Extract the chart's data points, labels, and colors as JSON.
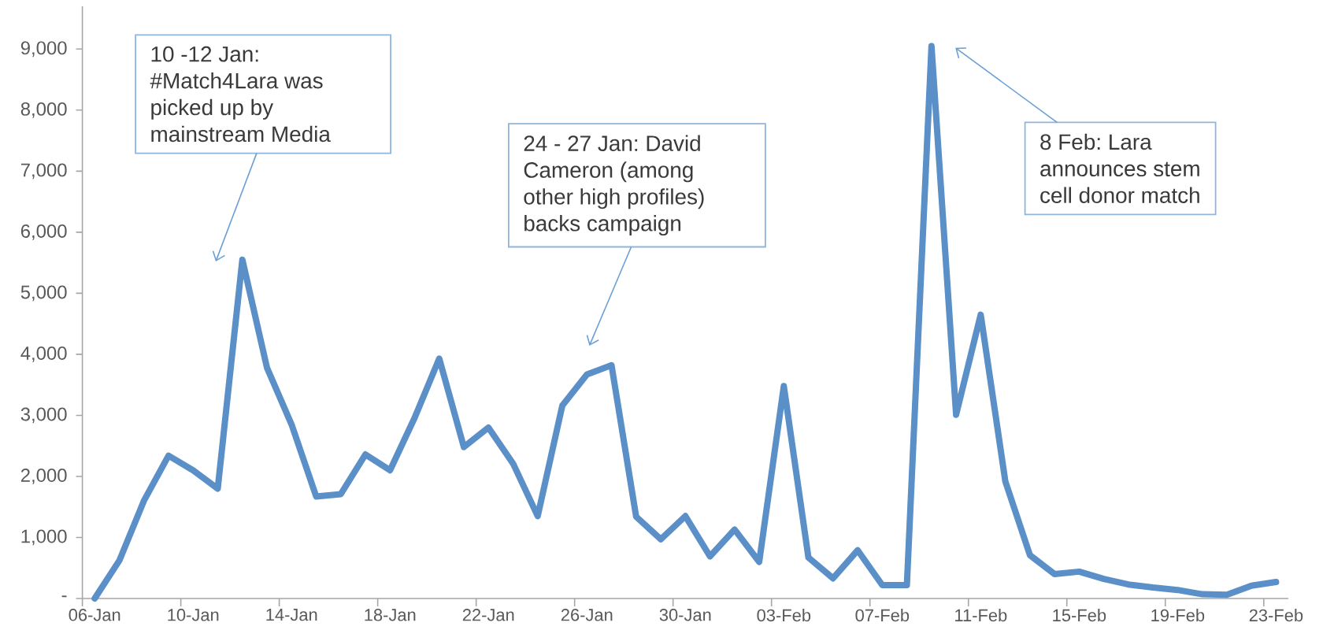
{
  "chart_data": {
    "type": "line",
    "categories": [
      "06-Jan",
      null,
      null,
      null,
      "10-Jan",
      null,
      null,
      null,
      "14-Jan",
      null,
      null,
      null,
      "18-Jan",
      null,
      null,
      null,
      "22-Jan",
      null,
      null,
      null,
      "26-Jan",
      null,
      null,
      null,
      "30-Jan",
      null,
      null,
      null,
      "03-Feb",
      null,
      null,
      null,
      "07-Feb",
      null,
      null,
      null,
      "11-Feb",
      null,
      null,
      null,
      "15-Feb",
      null,
      null,
      null,
      "19-Feb",
      null,
      null,
      null,
      "23-Feb"
    ],
    "series": [
      {
        "color": "#5b8fc8",
        "values": [
          0,
          620,
          1600,
          2340,
          2100,
          1800,
          5550,
          3780,
          2850,
          1670,
          1710,
          2360,
          2100,
          2960,
          3930,
          2480,
          2800,
          2210,
          1350,
          3160,
          3670,
          3820,
          1340,
          970,
          1350,
          690,
          1130,
          600,
          3480,
          670,
          330,
          790,
          220,
          220,
          9050,
          3010,
          4650,
          1920,
          710,
          400,
          440,
          320,
          230,
          180,
          140,
          70,
          60,
          210,
          270
        ]
      }
    ],
    "ylim": [
      0,
      9700
    ],
    "yticks": [
      {
        "value": 0,
        "label": "-"
      },
      {
        "value": 1000,
        "label": "1,000"
      },
      {
        "value": 2000,
        "label": "2,000"
      },
      {
        "value": 3000,
        "label": "3,000"
      },
      {
        "value": 4000,
        "label": "4,000"
      },
      {
        "value": 5000,
        "label": "5,000"
      },
      {
        "value": 6000,
        "label": "6,000"
      },
      {
        "value": 7000,
        "label": "7,000"
      },
      {
        "value": 8000,
        "label": "8,000"
      },
      {
        "value": 9000,
        "label": "9,000"
      }
    ],
    "annotations": [
      "10 -12 Jan: #Match4Lara was picked up by mainstream Media",
      "24 - 27 Jan: David Cameron (among other high profiles) backs campaign",
      "8 Feb: Lara announces stem cell donor match"
    ]
  }
}
